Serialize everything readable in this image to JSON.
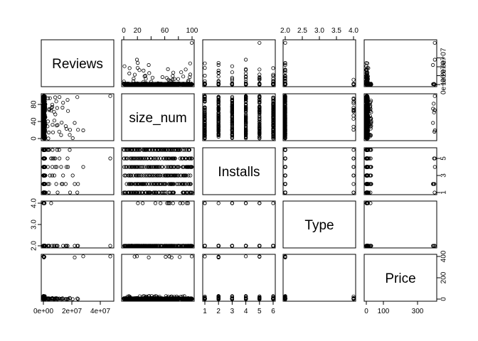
{
  "chart_data": {
    "type": "scatter",
    "kind": "pairs-matrix",
    "variables": [
      {
        "label": "Reviews",
        "range": [
          0,
          48000000
        ],
        "ticks": [
          0,
          20000000,
          40000000,
          60000000
        ],
        "tick_labels": [
          "0e+00",
          "2e+07",
          "4e+07"
        ],
        "ticks_right": [
          0,
          10000000,
          20000000,
          30000000
        ],
        "tick_labels_right": [
          "0e+00",
          "1e+07",
          "2e+07",
          "3e+07"
        ],
        "ticks_bottom": [
          0,
          20000000,
          40000000
        ],
        "tick_labels_bottom": [
          "0e+00",
          "2e+07",
          "4e+07"
        ]
      },
      {
        "label": "size_num",
        "range": [
          0,
          100
        ],
        "ticks_top": [
          0,
          20,
          40,
          60,
          80,
          100
        ],
        "tick_labels_top": [
          "0",
          "20",
          "",
          "60",
          "",
          "100"
        ],
        "ticks_right": [
          0,
          40,
          80
        ],
        "tick_labels_right": [
          "0",
          "40",
          "80"
        ]
      },
      {
        "label": "Installs",
        "range": [
          1,
          6
        ],
        "ticks_bottom": [
          1,
          2,
          3,
          4,
          5,
          6
        ],
        "tick_labels_bottom": [
          "1",
          "2",
          "3",
          "4",
          "5",
          "6"
        ],
        "ticks_right": [
          1,
          3,
          5
        ],
        "tick_labels_right": [
          "1",
          "3",
          "5"
        ]
      },
      {
        "label": "Type",
        "range": [
          2,
          4
        ],
        "ticks_top": [
          2.0,
          2.5,
          3.0,
          3.5,
          4.0
        ],
        "tick_labels_top": [
          "2.0",
          "2.5",
          "3.0",
          "3.5",
          "4.0"
        ],
        "ticks_left": [
          2.0,
          3.0,
          4.0
        ],
        "tick_labels_left": [
          "2.0",
          "3.0",
          "4.0"
        ]
      },
      {
        "label": "Price",
        "range": [
          0,
          400
        ],
        "ticks_bottom": [
          0,
          100,
          300
        ],
        "tick_labels_bottom": [
          "0",
          "100",
          "300"
        ],
        "ticks_right": [
          0,
          200,
          400
        ],
        "tick_labels_right": [
          "0",
          "200",
          "400"
        ]
      }
    ],
    "grid": false,
    "legend": "none"
  }
}
